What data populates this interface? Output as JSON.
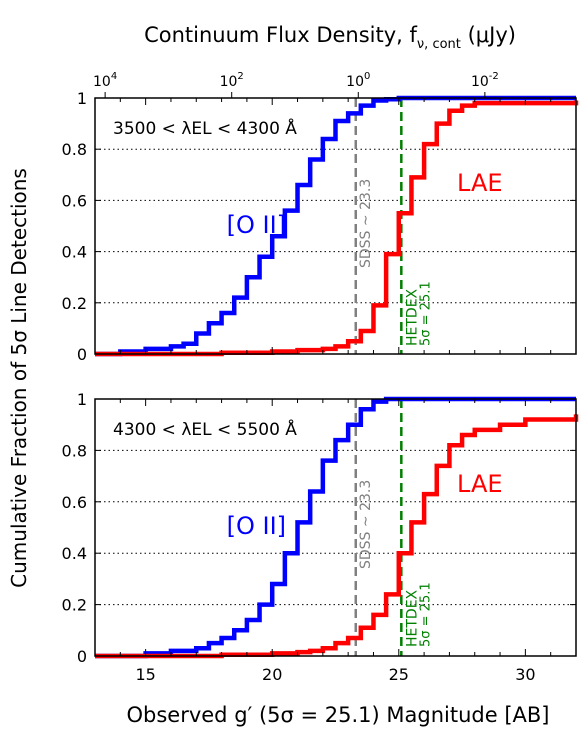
{
  "figure": {
    "top_axis_label": "Continuum Flux Density, f",
    "top_axis_label_sub": "ν, cont",
    "top_axis_label_unit": " (μJy)",
    "y_axis_label": "Cumulative Fraction of 5σ Line Detections",
    "x_axis_label": "Observed g′ (5σ = 25.1) Magnitude [AB]"
  },
  "colors": {
    "oii": "#0000ff",
    "lae": "#ff0000",
    "sdss": "#808080",
    "hetdex": "#008000",
    "grid": "#000000"
  },
  "chart_data": [
    {
      "type": "line",
      "panel": "top",
      "annotation": "3500 < λEL < 4300 Å",
      "xlim": [
        13,
        32
      ],
      "ylim": [
        0,
        1
      ],
      "y_ticks": [
        "0",
        "0.2",
        "0.4",
        "0.6",
        "0.8",
        "1"
      ],
      "top_ticks": [
        {
          "mag": 13.4,
          "label": "10^4"
        },
        {
          "mag": 18.4,
          "label": "10^2"
        },
        {
          "mag": 23.4,
          "label": "10^0"
        },
        {
          "mag": 28.4,
          "label": "10^-2"
        }
      ],
      "grid": "horizontal dotted",
      "reference_lines": [
        {
          "x": 23.3,
          "label": "SDSS ∼ 23.3",
          "color": "#808080"
        },
        {
          "x": 25.1,
          "label": "HETDEX",
          "label2": "5σ = 25.1",
          "color": "#008000"
        }
      ],
      "series": [
        {
          "name": "[O II]",
          "color": "#0000ff",
          "x": [
            13,
            14,
            15,
            16,
            16.5,
            17,
            17.5,
            18,
            18.5,
            19,
            19.5,
            20,
            20.5,
            21,
            21.5,
            22,
            22.5,
            23,
            23.5,
            24,
            24.5,
            25,
            32
          ],
          "y": [
            0.0,
            0.01,
            0.02,
            0.03,
            0.04,
            0.08,
            0.12,
            0.16,
            0.22,
            0.3,
            0.38,
            0.46,
            0.56,
            0.66,
            0.76,
            0.84,
            0.91,
            0.94,
            0.97,
            0.99,
            0.995,
            1.0,
            1.0
          ]
        },
        {
          "name": "LAE",
          "color": "#ff0000",
          "x": [
            13,
            18,
            20,
            21,
            22,
            22.5,
            23,
            23.5,
            24,
            24.5,
            25,
            25.5,
            26,
            26.5,
            27,
            27.5,
            28,
            32
          ],
          "y": [
            0.0,
            0.005,
            0.01,
            0.015,
            0.02,
            0.03,
            0.05,
            0.09,
            0.19,
            0.39,
            0.55,
            0.69,
            0.82,
            0.9,
            0.95,
            0.97,
            0.98,
            0.99
          ]
        }
      ]
    },
    {
      "type": "line",
      "panel": "bottom",
      "annotation": "4300 < λEL < 5500 Å",
      "xlim": [
        13,
        32
      ],
      "ylim": [
        0,
        1
      ],
      "x_ticks": [
        "15",
        "20",
        "25",
        "30"
      ],
      "y_ticks": [
        "0",
        "0.2",
        "0.4",
        "0.6",
        "0.8",
        "1"
      ],
      "grid": "horizontal dotted",
      "reference_lines": [
        {
          "x": 23.3,
          "label": "SDSS ∼ 23.3",
          "color": "#808080"
        },
        {
          "x": 25.1,
          "label": "HETDEX",
          "label2": "5σ = 25.1",
          "color": "#008000"
        }
      ],
      "series": [
        {
          "name": "[O II]",
          "color": "#0000ff",
          "x": [
            13,
            15,
            16,
            17,
            17.5,
            18,
            18.5,
            19,
            19.5,
            20,
            20.5,
            21,
            21.5,
            22,
            22.5,
            23,
            23.5,
            24,
            24.5,
            25,
            32
          ],
          "y": [
            0.0,
            0.01,
            0.02,
            0.03,
            0.05,
            0.07,
            0.1,
            0.14,
            0.2,
            0.28,
            0.4,
            0.52,
            0.64,
            0.76,
            0.84,
            0.9,
            0.96,
            0.99,
            1.0,
            1.0,
            1.0
          ]
        },
        {
          "name": "LAE",
          "color": "#ff0000",
          "x": [
            13,
            18,
            20,
            21,
            21.5,
            22,
            22.5,
            23,
            23.5,
            24,
            24.5,
            25,
            25.5,
            26,
            26.5,
            27,
            27.5,
            28,
            29,
            30,
            32
          ],
          "y": [
            0.0,
            0.005,
            0.01,
            0.015,
            0.02,
            0.03,
            0.05,
            0.07,
            0.11,
            0.16,
            0.24,
            0.4,
            0.52,
            0.63,
            0.74,
            0.82,
            0.86,
            0.88,
            0.9,
            0.92,
            0.94
          ]
        }
      ]
    }
  ]
}
